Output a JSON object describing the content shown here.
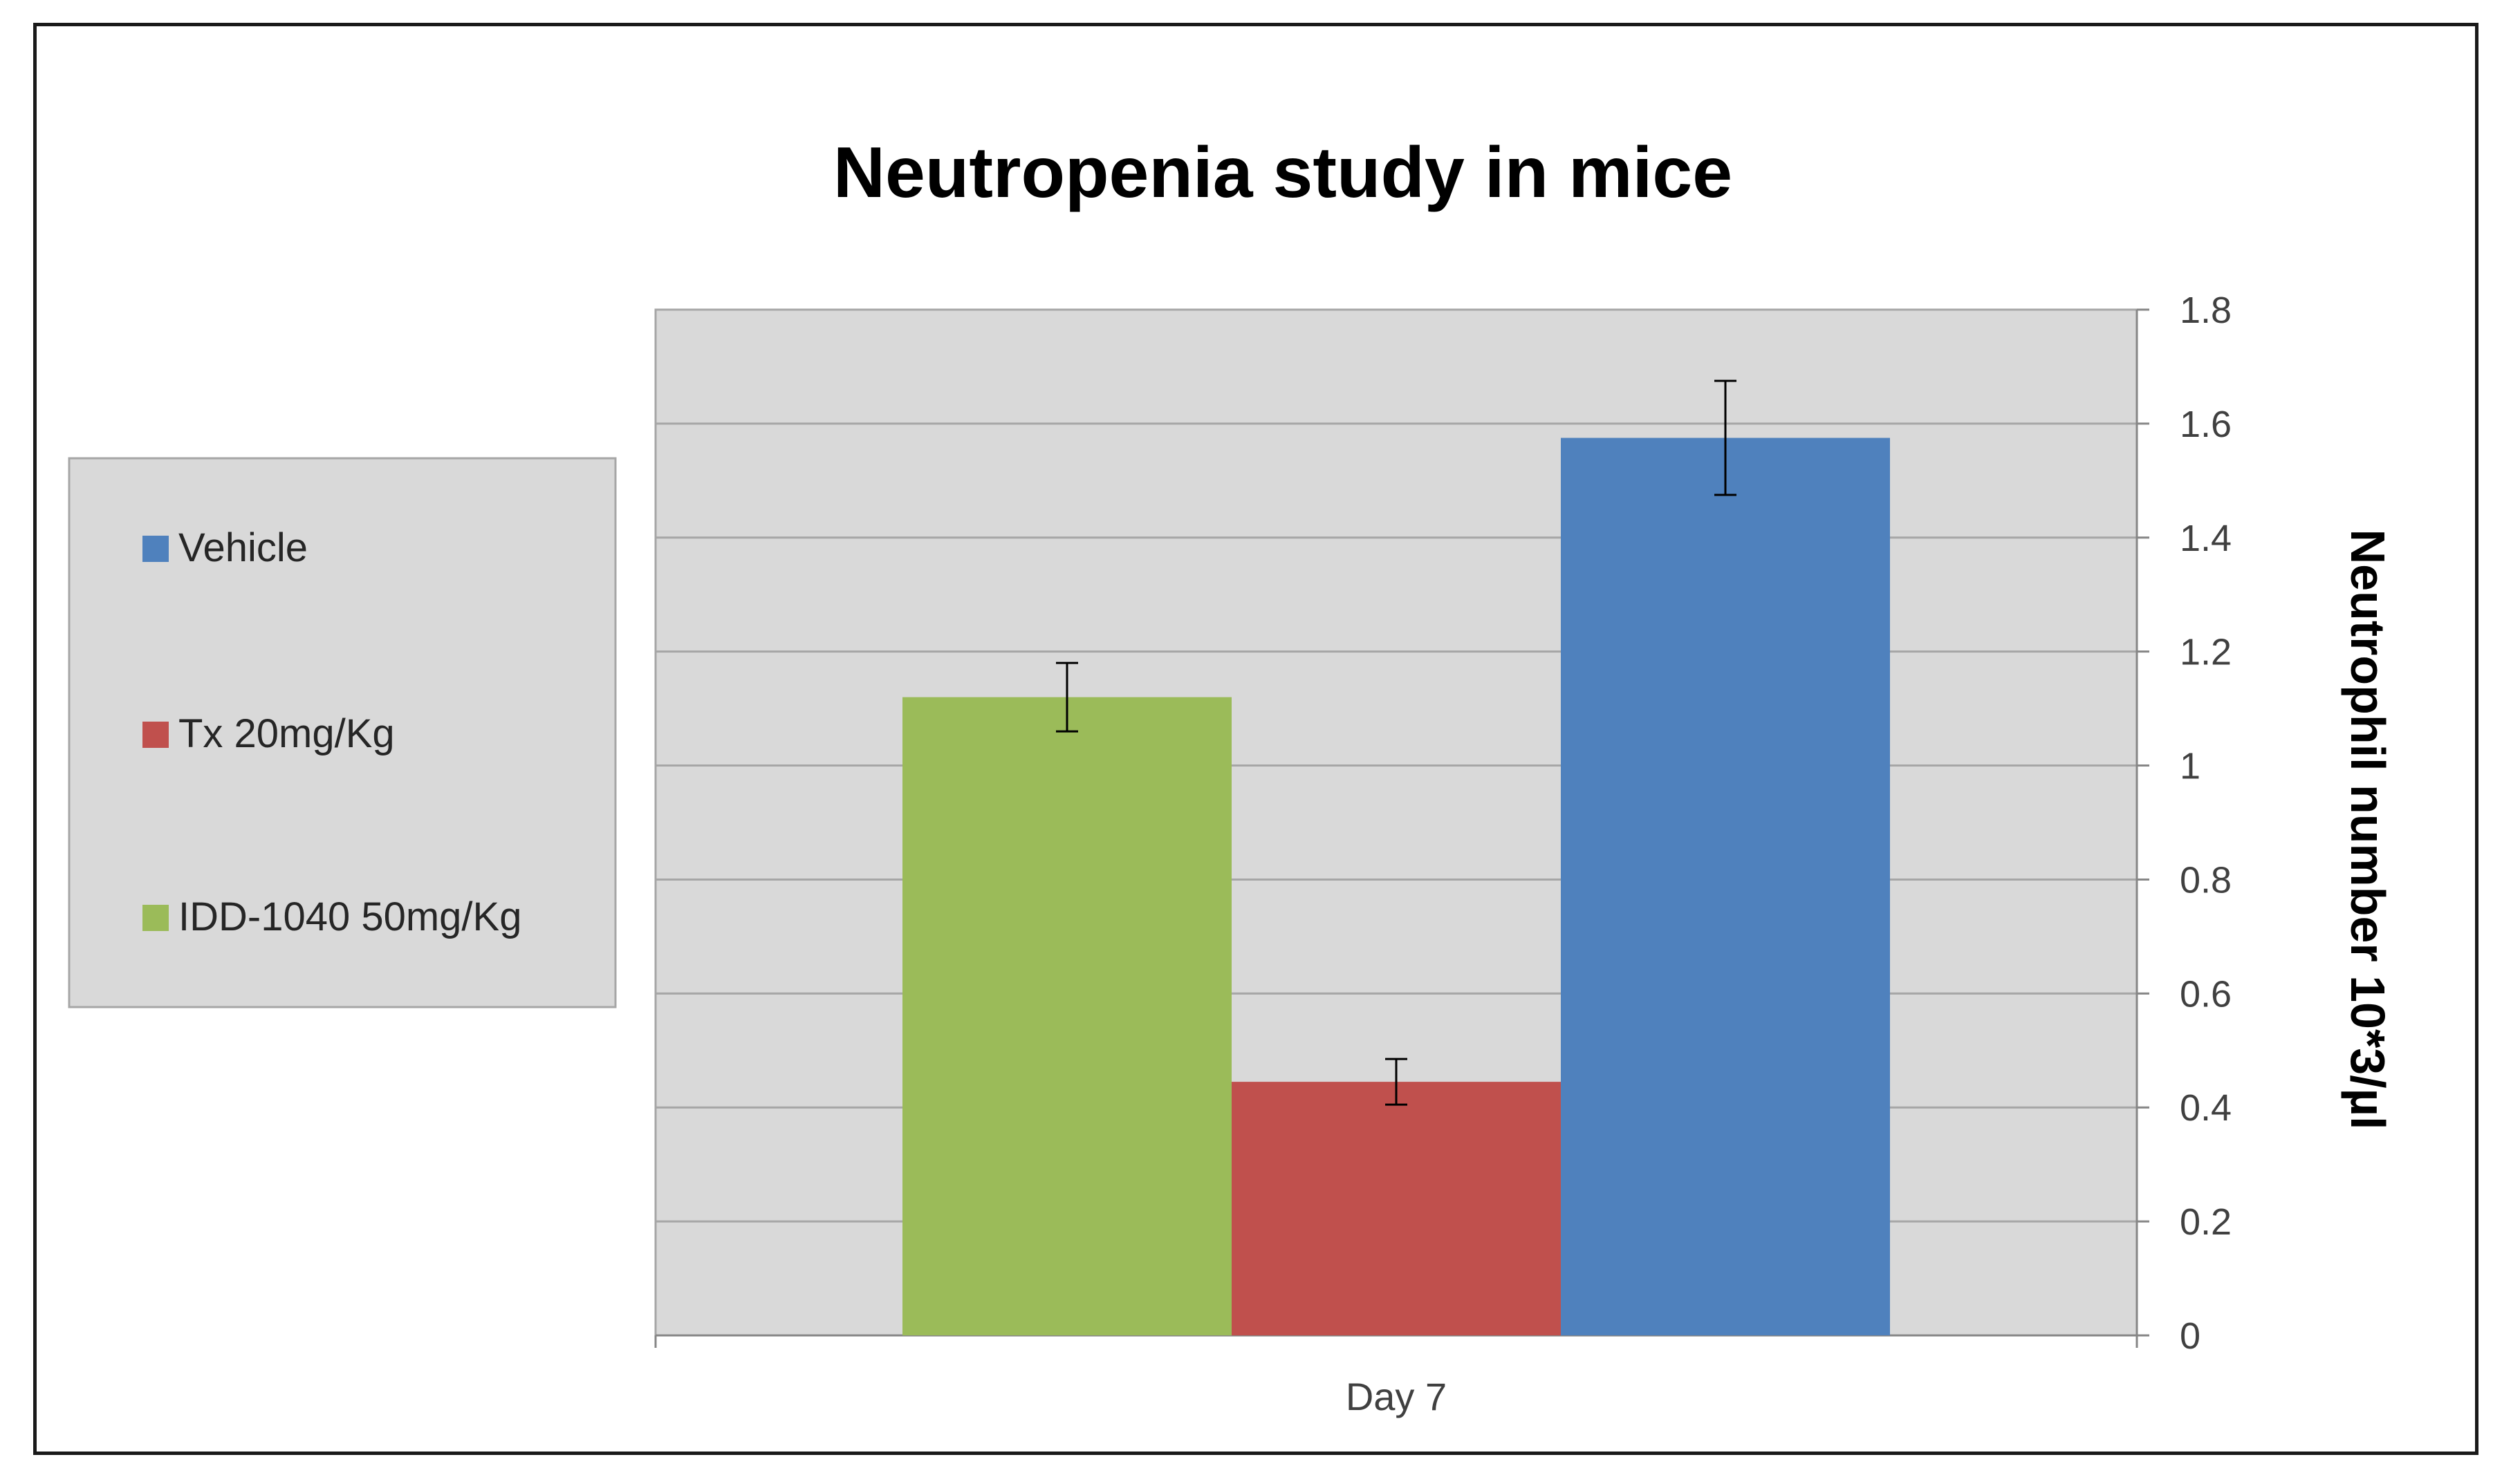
{
  "chart_data": {
    "type": "bar",
    "title": "Neutropenia study in mice",
    "categories": [
      "Day 7"
    ],
    "series": [
      {
        "name": "IDD-1040 50mg/Kg",
        "values": [
          1.12
        ],
        "error": [
          0.06
        ],
        "color": "#9BBB59"
      },
      {
        "name": "Tx 20mg/Kg",
        "values": [
          0.445
        ],
        "error": [
          0.04
        ],
        "color": "#C0504D"
      },
      {
        "name": "Vehicle",
        "values": [
          1.575
        ],
        "error": [
          0.1
        ],
        "color": "#4F81BD"
      }
    ],
    "legend_order": [
      "Vehicle",
      "Tx 20mg/Kg",
      "IDD-1040 50mg/Kg"
    ],
    "legend_position": "left",
    "xlabel": "",
    "ylabel": "Neutrophil  number  10*3/µl",
    "ylim": [
      0,
      1.8
    ],
    "yticks": [
      "0",
      "0.2",
      "0.4",
      "0.6",
      "0.8",
      "1",
      "1.2",
      "1.4",
      "1.6",
      "1.8"
    ],
    "y_axis_side": "right",
    "grid": true,
    "plot_background": "#D9D9D9"
  }
}
